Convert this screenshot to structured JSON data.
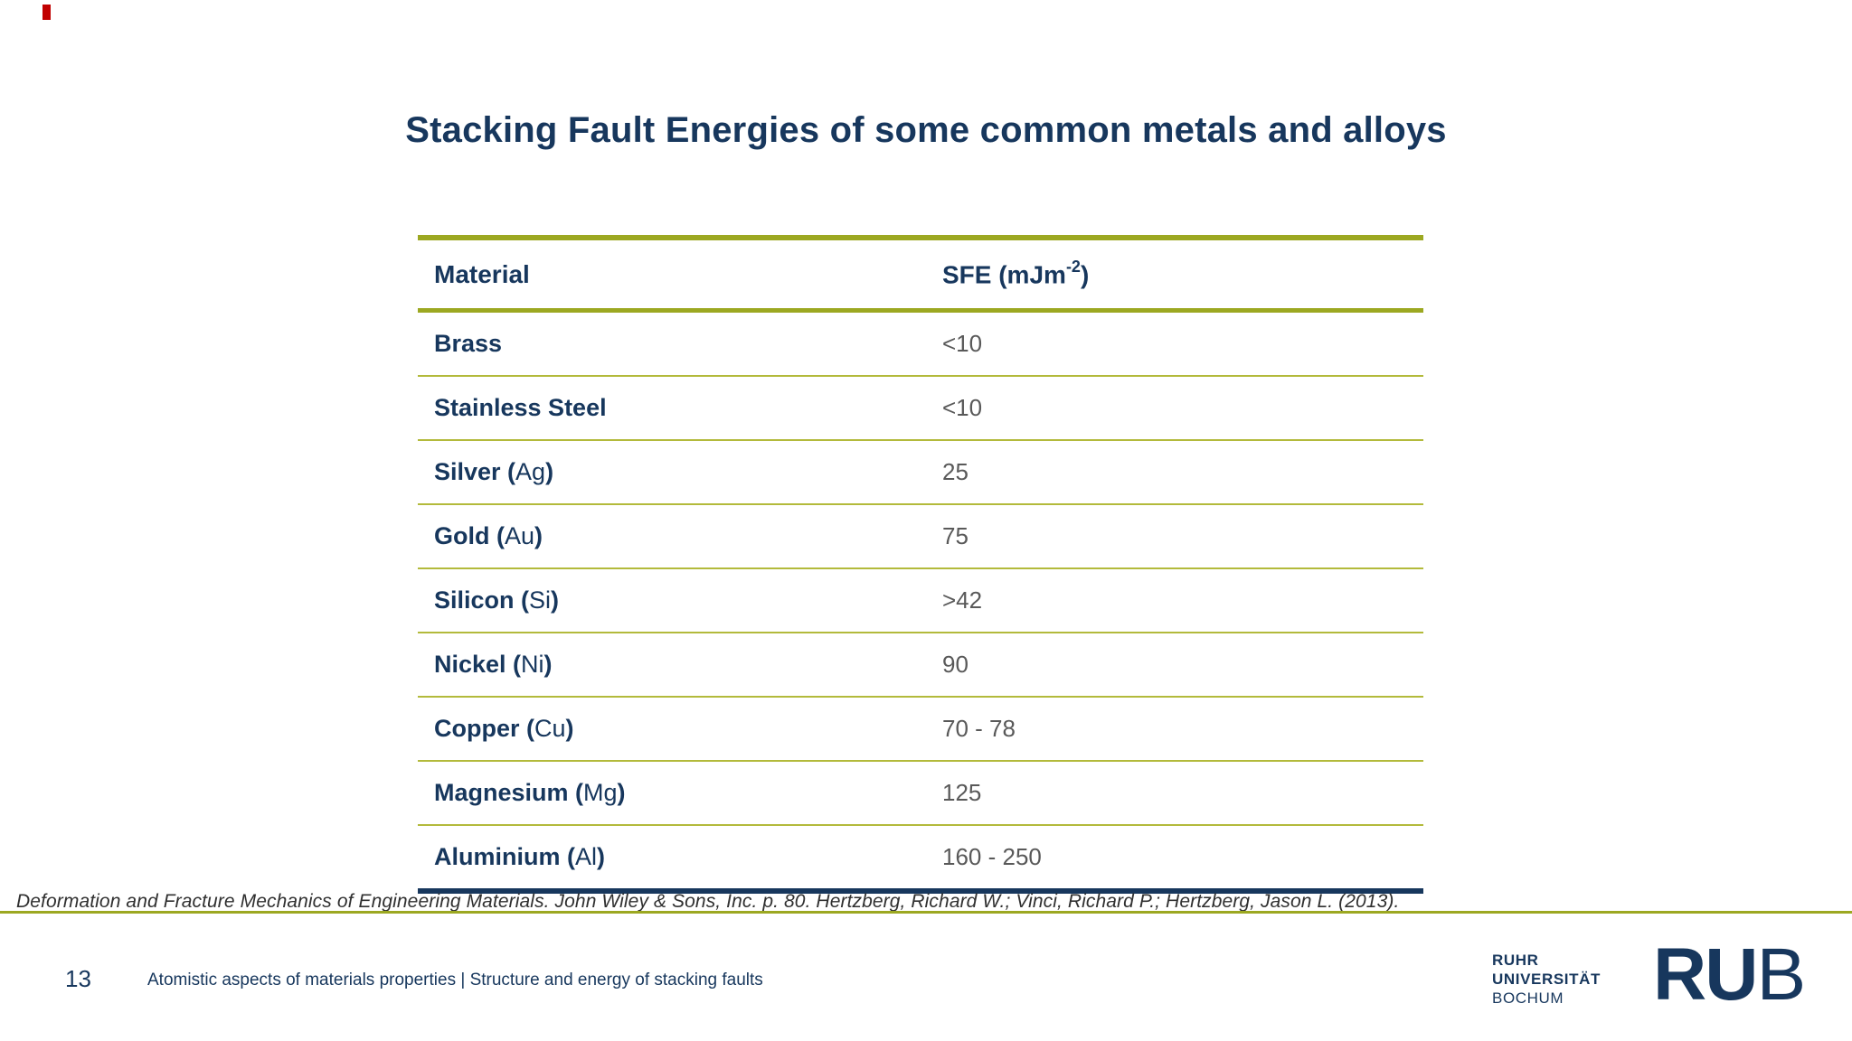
{
  "slide": {
    "title": "Stacking Fault Energies of some common metals and alloys",
    "table": {
      "col1_header": "Material",
      "col2_header_main": "SFE (mJm",
      "col2_header_sup": "-2",
      "col2_header_close": ")",
      "rows": [
        {
          "name": "Brass",
          "symbol": "",
          "value": "<10"
        },
        {
          "name": "Stainless Steel",
          "symbol": "",
          "value": "<10"
        },
        {
          "name": "Silver",
          "symbol": "Ag",
          "value": "25"
        },
        {
          "name": "Gold",
          "symbol": "Au",
          "value": "75"
        },
        {
          "name": "Silicon",
          "symbol": "Si",
          "value": ">42"
        },
        {
          "name": "Nickel",
          "symbol": "Ni",
          "value": "90"
        },
        {
          "name": "Copper",
          "symbol": "Cu",
          "value": "70 - 78"
        },
        {
          "name": "Magnesium",
          "symbol": "Mg",
          "value": "125"
        },
        {
          "name": "Aluminium",
          "symbol": "Al",
          "value": "160 - 250"
        }
      ]
    },
    "citation": "Deformation and Fracture Mechanics of Engineering Materials. John Wiley & Sons, Inc. p. 80.  Hertzberg, Richard W.; Vinci, Richard P.; Hertzberg, Jason L. (2013).",
    "footer": {
      "page_number": "13",
      "text": "Atomistic aspects of materials properties | Structure and energy of stacking faults"
    },
    "logo": {
      "line1": "RUHR",
      "line2": "UNIVERSITÄT",
      "line3": "BOCHUM",
      "wordmark_ru": "RU",
      "wordmark_b": "B"
    },
    "colors": {
      "navy": "#17375D",
      "olive_line": "#9CA821",
      "thin_line": "#B3BA3B",
      "value_gray": "#595959",
      "red_mark": "#C10000"
    }
  }
}
